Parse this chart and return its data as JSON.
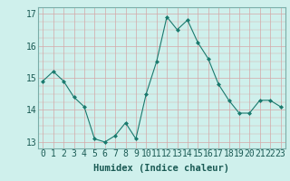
{
  "x": [
    0,
    1,
    2,
    3,
    4,
    5,
    6,
    7,
    8,
    9,
    10,
    11,
    12,
    13,
    14,
    15,
    16,
    17,
    18,
    19,
    20,
    21,
    22,
    23
  ],
  "y": [
    14.9,
    15.2,
    14.9,
    14.4,
    14.1,
    13.1,
    13.0,
    13.2,
    13.6,
    13.1,
    14.5,
    15.5,
    16.9,
    16.5,
    16.8,
    16.1,
    15.6,
    14.8,
    14.3,
    13.9,
    13.9,
    14.3,
    14.3,
    14.1
  ],
  "line_color": "#1a7a6e",
  "marker": "D",
  "marker_size": 2,
  "bg_color": "#cff0ec",
  "grid_color": "#d4a8a8",
  "xlabel": "Humidex (Indice chaleur)",
  "ylim": [
    12.8,
    17.2
  ],
  "yticks": [
    13,
    14,
    15,
    16,
    17
  ],
  "xticks": [
    0,
    1,
    2,
    3,
    4,
    5,
    6,
    7,
    8,
    9,
    10,
    11,
    12,
    13,
    14,
    15,
    16,
    17,
    18,
    19,
    20,
    21,
    22,
    23
  ],
  "xlabel_fontsize": 7.5,
  "tick_fontsize": 7
}
